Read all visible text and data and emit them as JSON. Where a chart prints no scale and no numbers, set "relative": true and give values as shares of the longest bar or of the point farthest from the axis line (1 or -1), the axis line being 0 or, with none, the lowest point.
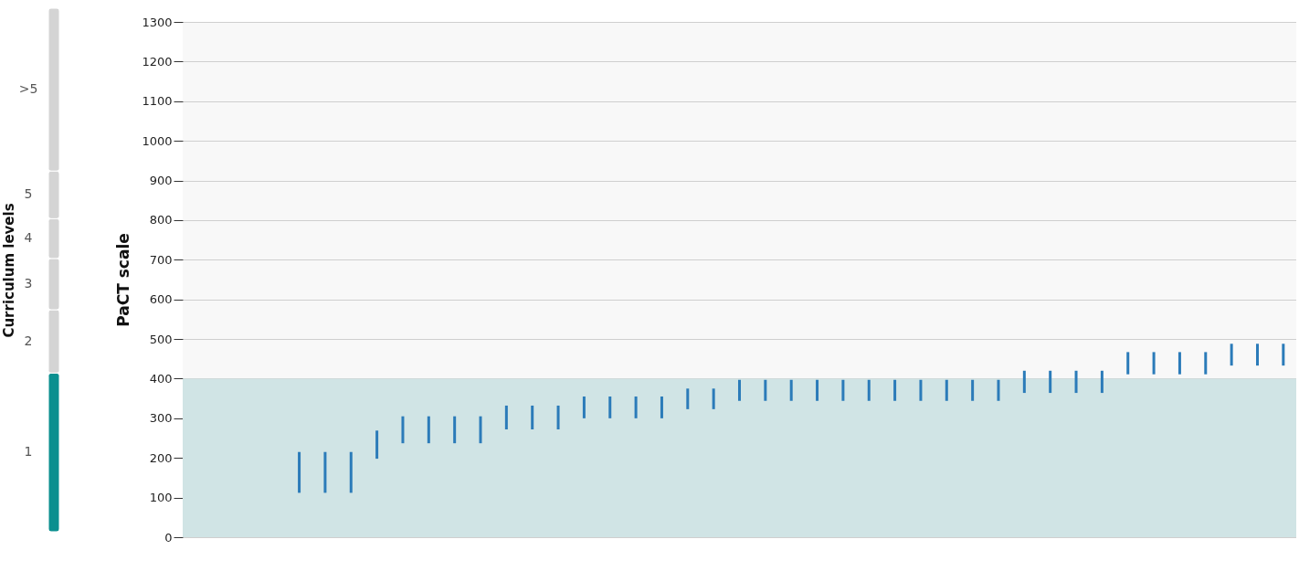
{
  "chart_data": [
    {
      "type": "bar",
      "stacked": true,
      "ylabel": "Curriculum levels",
      "categories": [
        null
      ],
      "relative": true,
      "tick_labels": false,
      "series": [
        {
          "name": "1",
          "color": "#0a8f8f",
          "values": [
            0.303
          ]
        },
        {
          "name": "2",
          "color": "#d4d4d4",
          "values": [
            0.121
          ]
        },
        {
          "name": "3",
          "color": "#d4d4d4",
          "values": [
            0.098
          ]
        },
        {
          "name": "4",
          "color": "#d4d4d4",
          "values": [
            0.076
          ]
        },
        {
          "name": "5",
          "color": "#d4d4d4",
          "values": [
            0.091
          ]
        },
        {
          "name": ">5",
          "color": "#d4d4d4",
          "values": [
            0.311
          ]
        }
      ]
    },
    {
      "type": "bar",
      "ylabel": "PaCT scale",
      "color": "#2b7bb9",
      "ylim": [
        0,
        1300
      ],
      "yticks": [
        0,
        100,
        200,
        300,
        400,
        500,
        600,
        700,
        800,
        900,
        1000,
        1100,
        1200,
        1300
      ],
      "grid": "y",
      "tick_labels": "y",
      "bands": [
        {
          "axis": "y",
          "from": 0,
          "to": 400,
          "color": "#d0e4e5"
        }
      ],
      "categories": [
        null,
        null,
        null,
        null,
        null,
        null,
        null,
        null,
        null,
        null,
        null,
        null,
        null,
        null,
        null,
        null,
        null,
        null,
        null,
        null,
        null,
        null,
        null,
        null,
        null,
        null,
        null,
        null,
        null,
        null,
        null,
        null,
        null,
        null,
        null,
        null,
        null,
        null,
        null,
        null,
        null,
        null,
        null
      ],
      "base": [
        null,
        null,
        null,
        null,
        112,
        112,
        112,
        198,
        237,
        237,
        237,
        237,
        272,
        272,
        272,
        300,
        300,
        300,
        300,
        323,
        323,
        344,
        344,
        344,
        344,
        344,
        344,
        344,
        344,
        344,
        344,
        344,
        364,
        364,
        364,
        364,
        411,
        411,
        411,
        411,
        433,
        433,
        433
      ],
      "values": [
        null,
        null,
        null,
        null,
        103,
        103,
        103,
        71,
        68,
        68,
        68,
        68,
        60,
        60,
        60,
        55,
        55,
        55,
        55,
        52,
        52,
        53,
        53,
        53,
        53,
        53,
        53,
        53,
        53,
        53,
        53,
        53,
        56,
        56,
        56,
        56,
        56,
        56,
        56,
        56,
        55,
        55,
        55
      ]
    }
  ]
}
